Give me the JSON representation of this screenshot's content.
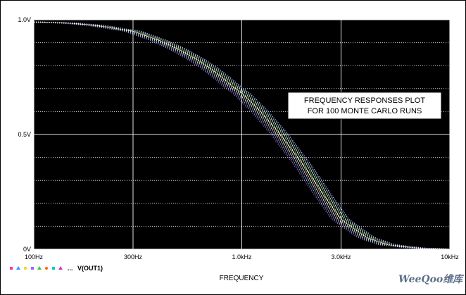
{
  "chart_data": {
    "type": "line",
    "x_scale": "log",
    "x_unit": "Hz",
    "xlim": [
      100,
      10000
    ],
    "ylim": [
      0,
      1.0
    ],
    "x_ticks": [
      100,
      300,
      1000,
      3000,
      10000
    ],
    "x_tick_labels": [
      "100Hz",
      "300Hz",
      "1.0kHz",
      "3.0kHz",
      "10kHz"
    ],
    "y_ticks": [
      0,
      0.5,
      1.0
    ],
    "y_tick_labels": [
      "0V",
      "0.5V",
      "1.0V"
    ],
    "xlabel": "FREQUENCY",
    "ylabel": "",
    "grid": true,
    "background": "#000000",
    "annotation": "FREQUENCY RESPONSES PLOT\nFOR 100 MONTE CARLO RUNS",
    "legend": {
      "text": "V(OUT1)",
      "placement": "bottom-left"
    },
    "series": [
      {
        "name": "V(OUT1)",
        "x": [
          100,
          150,
          200,
          300,
          400,
          500,
          600,
          700,
          800,
          900,
          1000,
          1200,
          1500,
          2000,
          2500,
          3000,
          4000,
          5000,
          7000,
          10000
        ],
        "values": [
          0.99,
          0.985,
          0.975,
          0.95,
          0.91,
          0.87,
          0.83,
          0.79,
          0.75,
          0.71,
          0.68,
          0.61,
          0.51,
          0.36,
          0.23,
          0.13,
          0.05,
          0.02,
          0.005,
          0.0
        ]
      }
    ],
    "monte_carlo_runs": 100
  },
  "colors": {
    "plot_bg": "#000000",
    "grid": "#cfcfcf",
    "trace_main": "#ffffff",
    "trace_variants": [
      "#ff66ff",
      "#66ffff",
      "#ffff66",
      "#aa88ff",
      "#88ff88",
      "#ff8888",
      "#66aaff"
    ],
    "legend_markers": [
      "#ff3399",
      "#3399ff",
      "#ffcc00",
      "#9966ff",
      "#33cc33",
      "#ff6600",
      "#00cccc",
      "#cc33cc"
    ]
  },
  "watermark": "WeeQoo维库"
}
